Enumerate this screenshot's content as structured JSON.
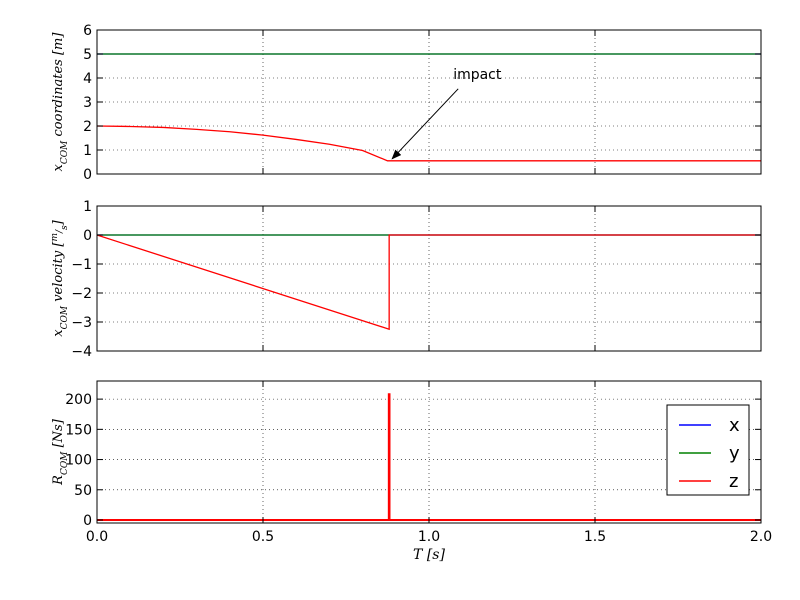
{
  "chart_data": [
    {
      "type": "line",
      "ylabel": "x_{COM} coordinates [m]",
      "ylabel_parts": {
        "main": "x",
        "sub": "COM",
        "rest": " coordinates [m]"
      },
      "xlim": [
        0.0,
        2.0
      ],
      "ylim": [
        0,
        6
      ],
      "yticks": [
        "0",
        "1",
        "2",
        "3",
        "4",
        "5",
        "6"
      ],
      "ytick_values": [
        0,
        1,
        2,
        3,
        4,
        5,
        6
      ],
      "grid": true,
      "series": [
        {
          "name": "x",
          "color": "#0000ff",
          "x": [
            0,
            2.0
          ],
          "y": [
            5.0,
            5.0
          ]
        },
        {
          "name": "y",
          "color": "#008000",
          "x": [
            0,
            2.0
          ],
          "y": [
            5.0,
            5.0
          ]
        },
        {
          "name": "z",
          "color": "#ff0000",
          "x": [
            0,
            0.1,
            0.2,
            0.3,
            0.4,
            0.5,
            0.6,
            0.7,
            0.8,
            0.875,
            0.9,
            1.0,
            1.5,
            2.0
          ],
          "y": [
            2.0,
            1.98,
            1.94,
            1.86,
            1.76,
            1.62,
            1.44,
            1.24,
            0.98,
            0.55,
            0.55,
            0.55,
            0.55,
            0.55
          ]
        }
      ],
      "annotation": {
        "text": "impact",
        "at": [
          0.88,
          0.55
        ],
        "text_at": [
          1.1,
          3.8
        ]
      }
    },
    {
      "type": "line",
      "ylabel": "x_{COM} velocity [m/s]",
      "ylabel_parts": {
        "main": "x",
        "sub": "COM",
        "rest": " velocity [",
        "num": "m",
        "den": "s",
        "close": "]"
      },
      "xlim": [
        0.0,
        2.0
      ],
      "ylim": [
        -4,
        1
      ],
      "yticks": [
        "−4",
        "−3",
        "−2",
        "−1",
        "0",
        "1"
      ],
      "ytick_values": [
        -4,
        -3,
        -2,
        -1,
        0,
        1
      ],
      "grid": true,
      "series": [
        {
          "name": "x",
          "color": "#0000ff",
          "x": [
            0,
            2.0
          ],
          "y": [
            0,
            0
          ]
        },
        {
          "name": "y",
          "color": "#008000",
          "x": [
            0,
            2.0
          ],
          "y": [
            0,
            0
          ]
        },
        {
          "name": "z",
          "color": "#ff0000",
          "x": [
            0,
            0.88,
            0.88,
            2.0
          ],
          "y": [
            0,
            -3.25,
            0,
            0
          ]
        }
      ]
    },
    {
      "type": "line",
      "ylabel": "R_{COM} [Ns]",
      "ylabel_parts": {
        "main": "R",
        "sub": "COM",
        "rest": " [Ns]"
      },
      "xlabel": "T [s]",
      "xlim": [
        0.0,
        2.0
      ],
      "ylim": [
        -5,
        230
      ],
      "xticks": [
        "0.0",
        "0.5",
        "1.0",
        "1.5",
        "2.0"
      ],
      "xtick_values": [
        0.0,
        0.5,
        1.0,
        1.5,
        2.0
      ],
      "yticks": [
        "0",
        "50",
        "100",
        "150",
        "200"
      ],
      "ytick_values": [
        0,
        50,
        100,
        150,
        200
      ],
      "grid": true,
      "legend": {
        "placement": "lower-right",
        "entries": [
          "x",
          "y",
          "z"
        ]
      },
      "series": [
        {
          "name": "x",
          "color": "#0000ff",
          "x": [
            0,
            2.0
          ],
          "y": [
            0,
            0
          ]
        },
        {
          "name": "y",
          "color": "#008000",
          "x": [
            0,
            2.0
          ],
          "y": [
            0,
            0
          ]
        },
        {
          "name": "z",
          "color": "#ff0000",
          "x": [
            0,
            0.879,
            0.879,
            0.881,
            0.881,
            2.0
          ],
          "y": [
            0,
            0,
            208,
            208,
            0,
            0
          ]
        }
      ]
    }
  ]
}
